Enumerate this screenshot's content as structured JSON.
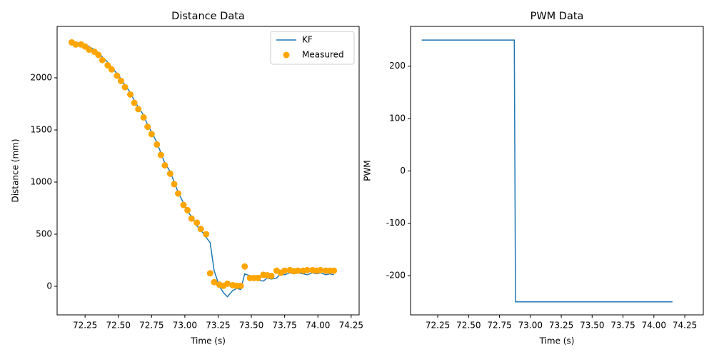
{
  "chart_data": [
    {
      "type": "line",
      "title": "Distance Data",
      "xlabel": "Time (s)",
      "ylabel": "Distance (mm)",
      "xlim": [
        72.04,
        74.31
      ],
      "ylim": [
        -274,
        2493
      ],
      "xticks": [
        72.25,
        {
          "value": 72.5,
          "label": "72.50"
        },
        72.75,
        {
          "value": 73,
          "label": "73.00"
        },
        73.25,
        {
          "value": 73.5,
          "label": "73.50"
        },
        73.75,
        {
          "value": 74,
          "label": "74.00"
        },
        74.25
      ],
      "yticks": [
        0,
        500,
        1000,
        1500,
        2000
      ],
      "legend": "upper right",
      "x": [
        72.15,
        72.18,
        72.22,
        72.25,
        72.28,
        72.32,
        72.35,
        72.38,
        72.42,
        72.45,
        72.49,
        72.52,
        72.55,
        72.59,
        72.62,
        72.65,
        72.69,
        72.72,
        72.75,
        72.79,
        72.82,
        72.85,
        72.89,
        72.92,
        72.95,
        72.99,
        73.02,
        73.05,
        73.09,
        73.12,
        73.16,
        73.19,
        73.22,
        73.26,
        73.29,
        73.32,
        73.36,
        73.39,
        73.42,
        73.45,
        73.49,
        73.52,
        73.55,
        73.59,
        73.62,
        73.65,
        73.69,
        73.72,
        73.75,
        73.79,
        73.82,
        73.85,
        73.89,
        73.92,
        73.96,
        73.99,
        74.02,
        74.06,
        74.09,
        74.12
      ],
      "series": [
        {
          "name": "KF",
          "type": "line",
          "color": "#1f77b4",
          "values": [
            2330,
            2330,
            2340,
            2320,
            2300,
            2270,
            2240,
            2200,
            2150,
            2100,
            2040,
            1990,
            1930,
            1860,
            1780,
            1720,
            1640,
            1550,
            1480,
            1380,
            1280,
            1180,
            1100,
            1000,
            900,
            800,
            720,
            670,
            580,
            540,
            470,
            420,
            150,
            0,
            -60,
            -100,
            -40,
            -20,
            -30,
            120,
            100,
            80,
            60,
            50,
            80,
            70,
            80,
            120,
            110,
            130,
            120,
            130,
            120,
            110,
            130,
            120,
            130,
            110,
            120,
            110
          ]
        },
        {
          "name": "Measured",
          "type": "scatter",
          "color": "#ffa500",
          "values": [
            2340,
            2320,
            2320,
            2300,
            2270,
            2250,
            2220,
            2170,
            2120,
            2080,
            2020,
            1970,
            1910,
            1840,
            1760,
            1700,
            1620,
            1530,
            1460,
            1360,
            1260,
            1160,
            1080,
            980,
            890,
            780,
            730,
            650,
            610,
            550,
            500,
            125,
            40,
            15,
            5,
            25,
            10,
            5,
            5,
            190,
            80,
            80,
            80,
            110,
            105,
            100,
            150,
            130,
            150,
            155,
            145,
            150,
            150,
            155,
            155,
            150,
            155,
            150,
            150,
            150
          ]
        }
      ]
    },
    {
      "type": "line",
      "title": "PWM Data",
      "xlabel": "Time (s)",
      "ylabel": "PWM",
      "xlim": [
        72.03,
        74.4
      ],
      "ylim": [
        -275,
        276
      ],
      "xticks": [
        72.25,
        {
          "value": 72.5,
          "label": "72.50"
        },
        72.75,
        {
          "value": 73,
          "label": "73.00"
        },
        73.25,
        {
          "value": 73.5,
          "label": "73.50"
        },
        73.75,
        {
          "value": 74,
          "label": "74.00"
        },
        74.25
      ],
      "yticks": [
        -200,
        -100,
        0,
        100,
        200
      ],
      "x": [
        72.12,
        72.87,
        72.88,
        74.15
      ],
      "series": [
        {
          "name": "PWM",
          "type": "line",
          "color": "#1f77b4",
          "values": [
            250,
            250,
            -250,
            -250
          ]
        }
      ]
    }
  ]
}
